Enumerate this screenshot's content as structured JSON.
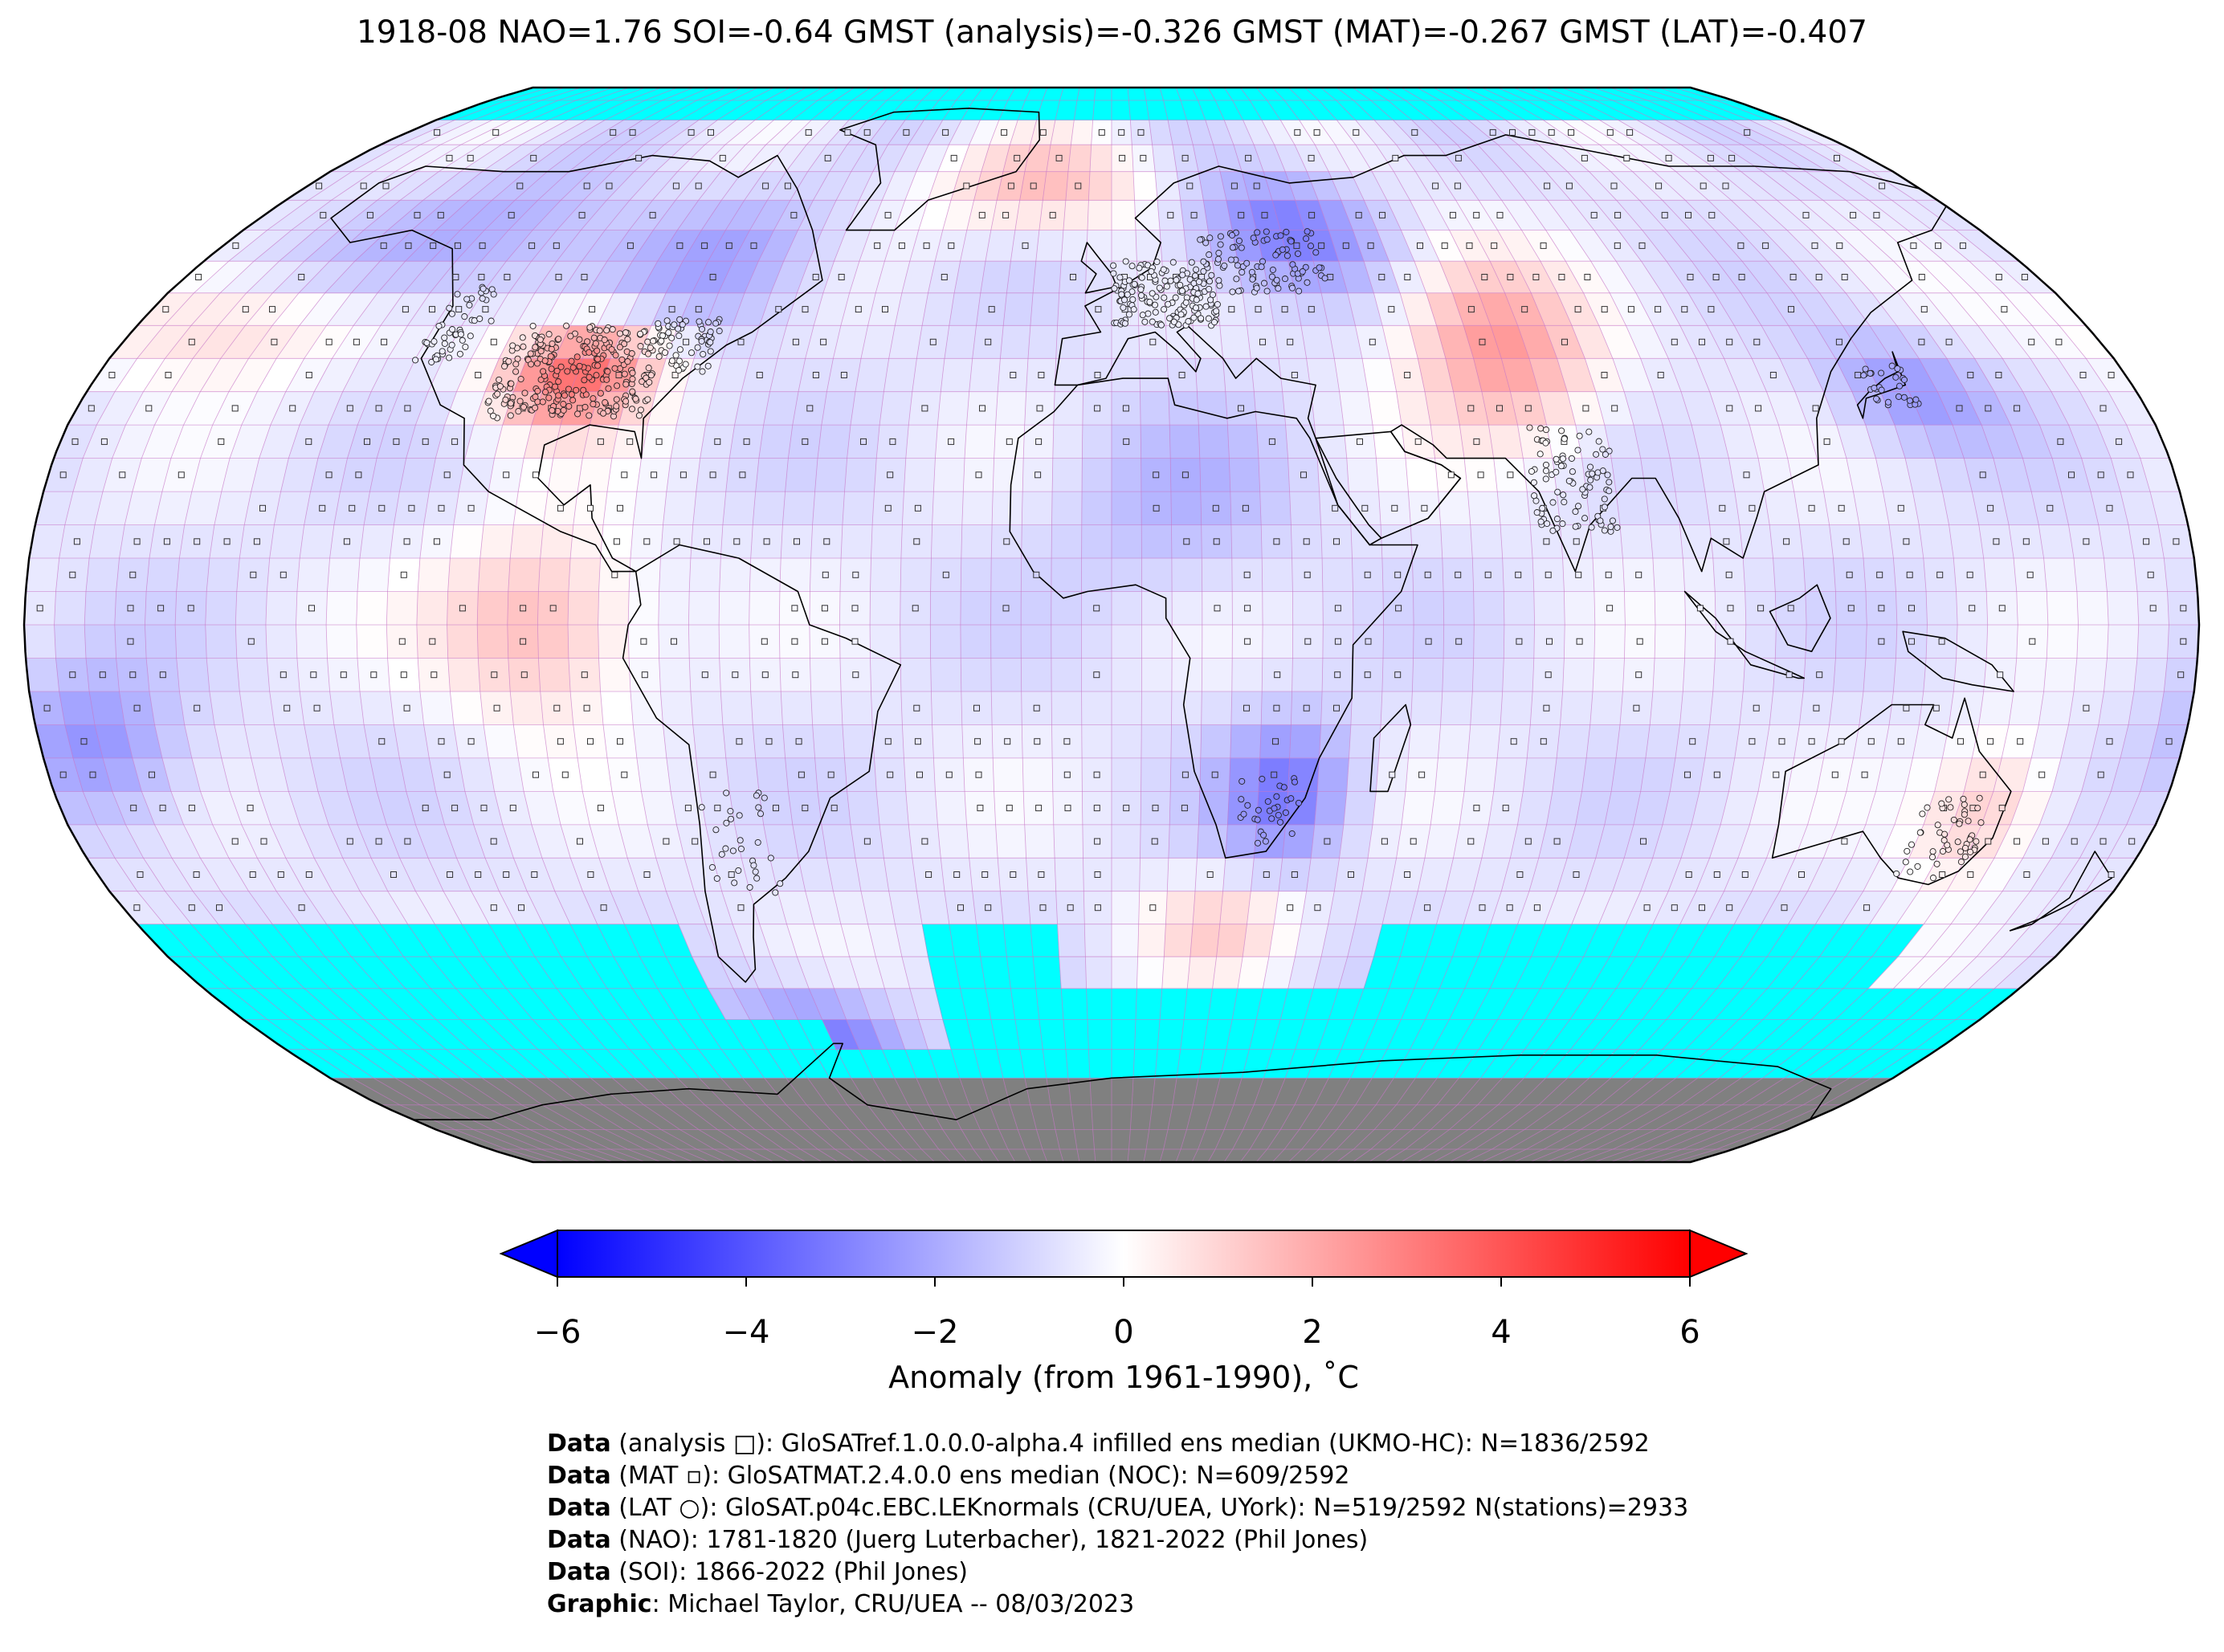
{
  "title": "1918-08 NAO=1.76 SOI=-0.64 GMST (analysis)=-0.326 GMST (MAT)=-0.267 GMST (LAT)=-0.407",
  "map": {
    "projection": "Robinson",
    "grid_resolution_deg": 5,
    "no_data_color": "#00ffff",
    "land_ice_color": "#808080",
    "gridline_color": "#c878c8",
    "coastline_color": "#000000",
    "anomaly_regions": [
      {
        "region": "Central United States",
        "anomaly_c": 3.5
      },
      {
        "region": "Northwest North America",
        "anomaly_c": -2.0
      },
      {
        "region": "Northeast North America",
        "anomaly_c": -1.8
      },
      {
        "region": "Greenland Sea / Iceland",
        "anomaly_c": 1.5
      },
      {
        "region": "Northern Europe / Western Russia",
        "anomaly_c": -3.0
      },
      {
        "region": "Central Asia",
        "anomaly_c": 2.5
      },
      {
        "region": "North Africa / Sahara",
        "anomaly_c": -1.5
      },
      {
        "region": "Eastern Tropical Pacific",
        "anomaly_c": 2.0
      },
      {
        "region": "Southeast Africa",
        "anomaly_c": -2.0
      },
      {
        "region": "Drake Passage / Southern Ocean",
        "anomaly_c": -2.5
      },
      {
        "region": "Eastern Australia",
        "anomaly_c": 1.5
      },
      {
        "region": "Northwest Pacific / Japan",
        "anomaly_c": -1.5
      }
    ]
  },
  "colorbar": {
    "colormap": "bwr",
    "vmin": -6,
    "vmax": 6,
    "extend": "both",
    "ticks": [
      "−6",
      "−4",
      "−2",
      "0",
      "2",
      "4",
      "6"
    ],
    "label": "Anomaly (from 1961-1990), ˚C"
  },
  "credits": [
    {
      "bold": "Data",
      "text": " (analysis □): GloSATref.1.0.0.0-alpha.4 infilled ens median (UKMO-HC): N=1836/2592"
    },
    {
      "bold": "Data",
      "text": " (MAT ▫): GloSATMAT.2.4.0.0 ens median (NOC): N=609/2592"
    },
    {
      "bold": "Data",
      "text": " (LAT ○): GloSAT.p04c.EBC.LEKnormals (CRU/UEA, UYork): N=519/2592 N(stations)=2933"
    },
    {
      "bold": "Data",
      "text": " (NAO): 1781-1820 (Juerg Luterbacher), 1821-2022 (Phil Jones)"
    },
    {
      "bold": "Data",
      "text": " (SOI): 1866-2022 (Phil Jones)"
    },
    {
      "bold": "Graphic",
      "text": ": Michael Taylor, CRU/UEA -- 08/03/2023"
    }
  ]
}
